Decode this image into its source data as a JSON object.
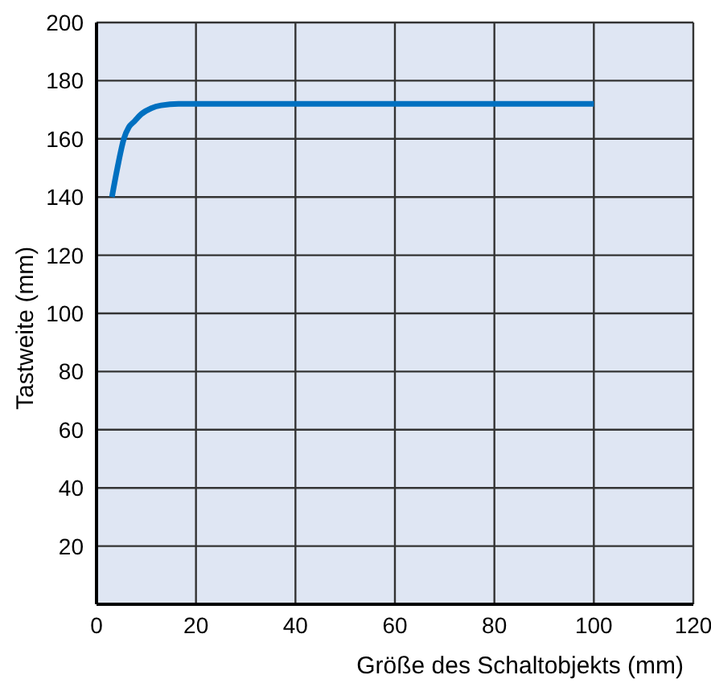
{
  "chart_data": {
    "type": "line",
    "xlabel": "Größe des Schaltobjekts (mm)",
    "ylabel": "Tastweite (mm)",
    "x": [
      3.1,
      4.2,
      5.5,
      6.5,
      7.6,
      9,
      11,
      13,
      16.5,
      20,
      40,
      60,
      80,
      100
    ],
    "series": [
      {
        "color": "#0070c0",
        "values": [
          140,
          150,
          160,
          164,
          166,
          168.5,
          170.5,
          171.5,
          172,
          172,
          172,
          172,
          172,
          172
        ]
      }
    ],
    "xlim": [
      0,
      120
    ],
    "xticks": [
      0,
      20,
      40,
      60,
      80,
      100,
      120
    ],
    "ylim": [
      0,
      200
    ],
    "yticks": [
      20,
      40,
      60,
      80,
      100,
      120,
      140,
      160,
      180,
      200
    ],
    "grid": true,
    "marker": "none",
    "line_style": "solid"
  }
}
